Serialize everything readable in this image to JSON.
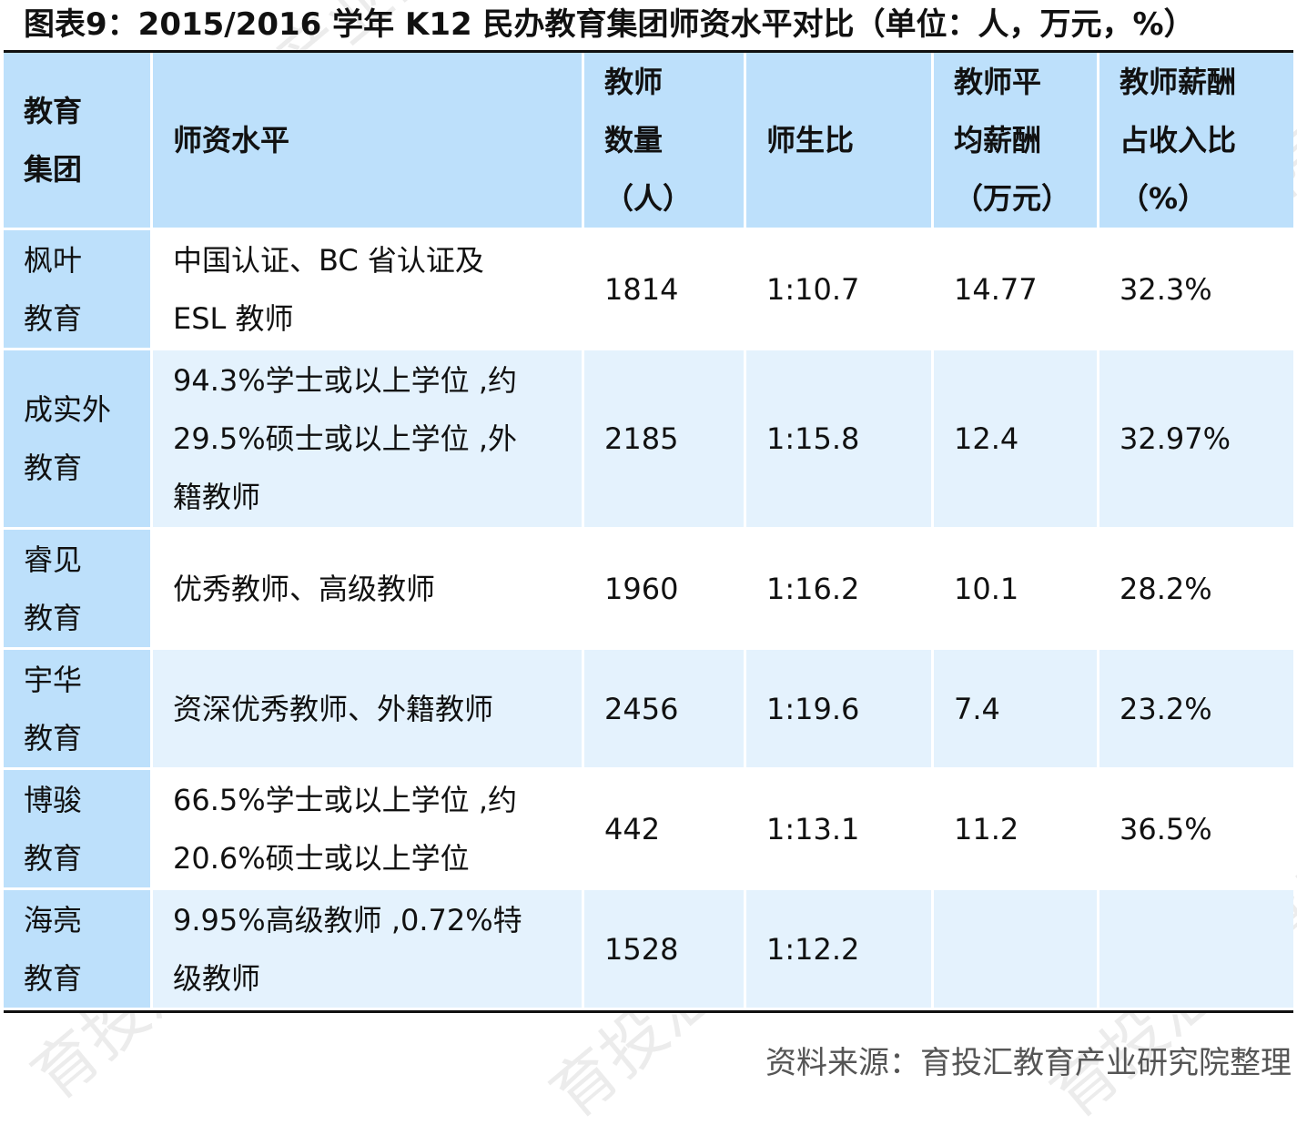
{
  "title": "图表9：2015/2016 学年 K12 民办教育集团师资水平对比（单位：人，万元，%）",
  "headers": [
    "教育\n集团",
    "师资水平",
    "教师\n数量\n（人）",
    "师生比",
    "教师平\n均薪酬\n（万元）",
    "教师薪酬\n占收入比\n（%）"
  ],
  "rows": [
    {
      "group": "枫叶\n教育",
      "qualification": "中国认证、BC 省认证及\nESL 教师",
      "teachers": "1814",
      "ratio": "1:10.7",
      "salary": "14.77",
      "salary_share": "32.3%"
    },
    {
      "group": "成实外\n教育",
      "qualification": "94.3%学士或以上学位 ,约\n29.5%硕士或以上学位 ,外\n籍教师",
      "teachers": "2185",
      "ratio": "1:15.8",
      "salary": "12.4",
      "salary_share": "32.97%"
    },
    {
      "group": "睿见\n教育",
      "qualification": "优秀教师、高级教师",
      "teachers": "1960",
      "ratio": "1:16.2",
      "salary": "10.1",
      "salary_share": "28.2%"
    },
    {
      "group": "宇华\n教育",
      "qualification": "资深优秀教师、外籍教师",
      "teachers": "2456",
      "ratio": "1:19.6",
      "salary": "7.4",
      "salary_share": "23.2%"
    },
    {
      "group": "博骏\n教育",
      "qualification": "66.5%学士或以上学位 ,约\n20.6%硕士或以上学位",
      "teachers": "442",
      "ratio": "1:13.1",
      "salary": "11.2",
      "salary_share": "36.5%"
    },
    {
      "group": "海亮\n教育",
      "qualification": "9.95%高级教师 ,0.72%特\n级教师",
      "teachers": "1528",
      "ratio": "1:12.2",
      "salary": "",
      "salary_share": ""
    }
  ],
  "source": "资料来源：育投汇教育产业研究院整理",
  "watermark": "育投汇教育产业研究院",
  "colors": {
    "header_bg": "#bde0fb",
    "alt_row_bg": "#e4f2fd",
    "rule": "#111111"
  }
}
